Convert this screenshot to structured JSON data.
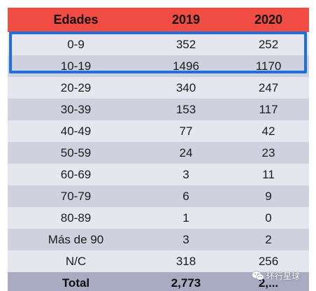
{
  "table": {
    "headers": [
      "Edades",
      "2019",
      "2020"
    ],
    "rows": [
      [
        "0-9",
        "352",
        "252"
      ],
      [
        "10-19",
        "1496",
        "1170"
      ],
      [
        "20-29",
        "340",
        "247"
      ],
      [
        "30-39",
        "153",
        "117"
      ],
      [
        "40-49",
        "77",
        "42"
      ],
      [
        "50-59",
        "24",
        "23"
      ],
      [
        "60-69",
        "3",
        "11"
      ],
      [
        "70-79",
        "6",
        "9"
      ],
      [
        "80-89",
        "1",
        "0"
      ],
      [
        "Más de 90",
        "3",
        "2"
      ],
      [
        "N/C",
        "318",
        "256"
      ]
    ],
    "total": [
      "Total",
      "2,773",
      "2,..."
    ],
    "highlighted_rows": [
      "0-9",
      "10-19"
    ]
  },
  "watermark": {
    "text": "环行星球",
    "icon": "wechat-icon"
  },
  "colors": {
    "header_bg": "#f14c43",
    "row_light": "#e5e6ee",
    "row_dark": "#cfd1de",
    "total_bg": "#a8abc2",
    "highlight_border": "#1f6fe0"
  }
}
